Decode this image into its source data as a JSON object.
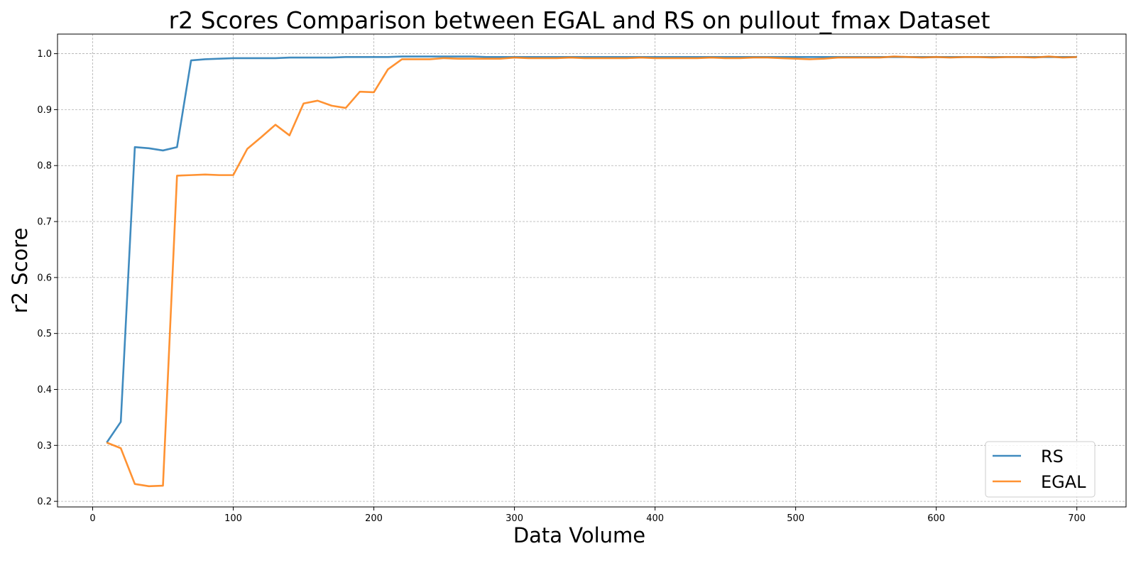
{
  "chart_data": {
    "type": "line",
    "title": "r2 Scores Comparison between EGAL and RS on pullout_fmax Dataset",
    "xlabel": "Data Volume",
    "ylabel": "r2 Score",
    "xlim": [
      -25,
      735
    ],
    "ylim": [
      0.19,
      1.035
    ],
    "xticks": [
      0,
      100,
      200,
      300,
      400,
      500,
      600,
      700
    ],
    "yticks": [
      0.2,
      0.3,
      0.4,
      0.5,
      0.6,
      0.7,
      0.8,
      0.9,
      1.0
    ],
    "grid": true,
    "legend_position": "bottom-right",
    "x": [
      10,
      20,
      30,
      40,
      50,
      60,
      70,
      80,
      90,
      100,
      110,
      120,
      130,
      140,
      150,
      160,
      170,
      180,
      190,
      200,
      210,
      220,
      230,
      240,
      250,
      260,
      270,
      280,
      290,
      300,
      310,
      320,
      330,
      340,
      350,
      360,
      370,
      380,
      390,
      400,
      410,
      420,
      430,
      440,
      450,
      460,
      470,
      480,
      490,
      500,
      510,
      520,
      530,
      540,
      550,
      560,
      570,
      580,
      590,
      600,
      610,
      620,
      630,
      640,
      650,
      660,
      670,
      680,
      690,
      700
    ],
    "series": [
      {
        "name": "RS",
        "color": "#1f77b4",
        "values": [
          0.305,
          0.342,
          0.833,
          0.831,
          0.827,
          0.833,
          0.988,
          0.99,
          0.991,
          0.992,
          0.992,
          0.992,
          0.992,
          0.993,
          0.993,
          0.993,
          0.993,
          0.994,
          0.994,
          0.994,
          0.994,
          0.995,
          0.995,
          0.995,
          0.995,
          0.995,
          0.995,
          0.994,
          0.994,
          0.994,
          0.994,
          0.994,
          0.994,
          0.994,
          0.994,
          0.994,
          0.994,
          0.994,
          0.994,
          0.994,
          0.994,
          0.994,
          0.994,
          0.994,
          0.994,
          0.994,
          0.994,
          0.994,
          0.994,
          0.994,
          0.994,
          0.994,
          0.994,
          0.994,
          0.994,
          0.994,
          0.994,
          0.994,
          0.994,
          0.994,
          0.994,
          0.994,
          0.994,
          0.994,
          0.994,
          0.994,
          0.994,
          0.994,
          0.994,
          0.994
        ]
      },
      {
        "name": "EGAL",
        "color": "#ff7f0e",
        "values": [
          0.305,
          0.295,
          0.231,
          0.227,
          0.228,
          0.782,
          0.783,
          0.784,
          0.783,
          0.783,
          0.83,
          0.851,
          0.873,
          0.854,
          0.911,
          0.916,
          0.907,
          0.903,
          0.932,
          0.931,
          0.972,
          0.99,
          0.99,
          0.99,
          0.992,
          0.991,
          0.991,
          0.991,
          0.991,
          0.993,
          0.992,
          0.992,
          0.992,
          0.993,
          0.992,
          0.992,
          0.992,
          0.992,
          0.993,
          0.992,
          0.992,
          0.992,
          0.992,
          0.993,
          0.992,
          0.992,
          0.993,
          0.993,
          0.992,
          0.991,
          0.99,
          0.991,
          0.993,
          0.993,
          0.993,
          0.993,
          0.995,
          0.994,
          0.993,
          0.994,
          0.993,
          0.994,
          0.994,
          0.993,
          0.994,
          0.994,
          0.993,
          0.995,
          0.993,
          0.994
        ]
      }
    ]
  }
}
